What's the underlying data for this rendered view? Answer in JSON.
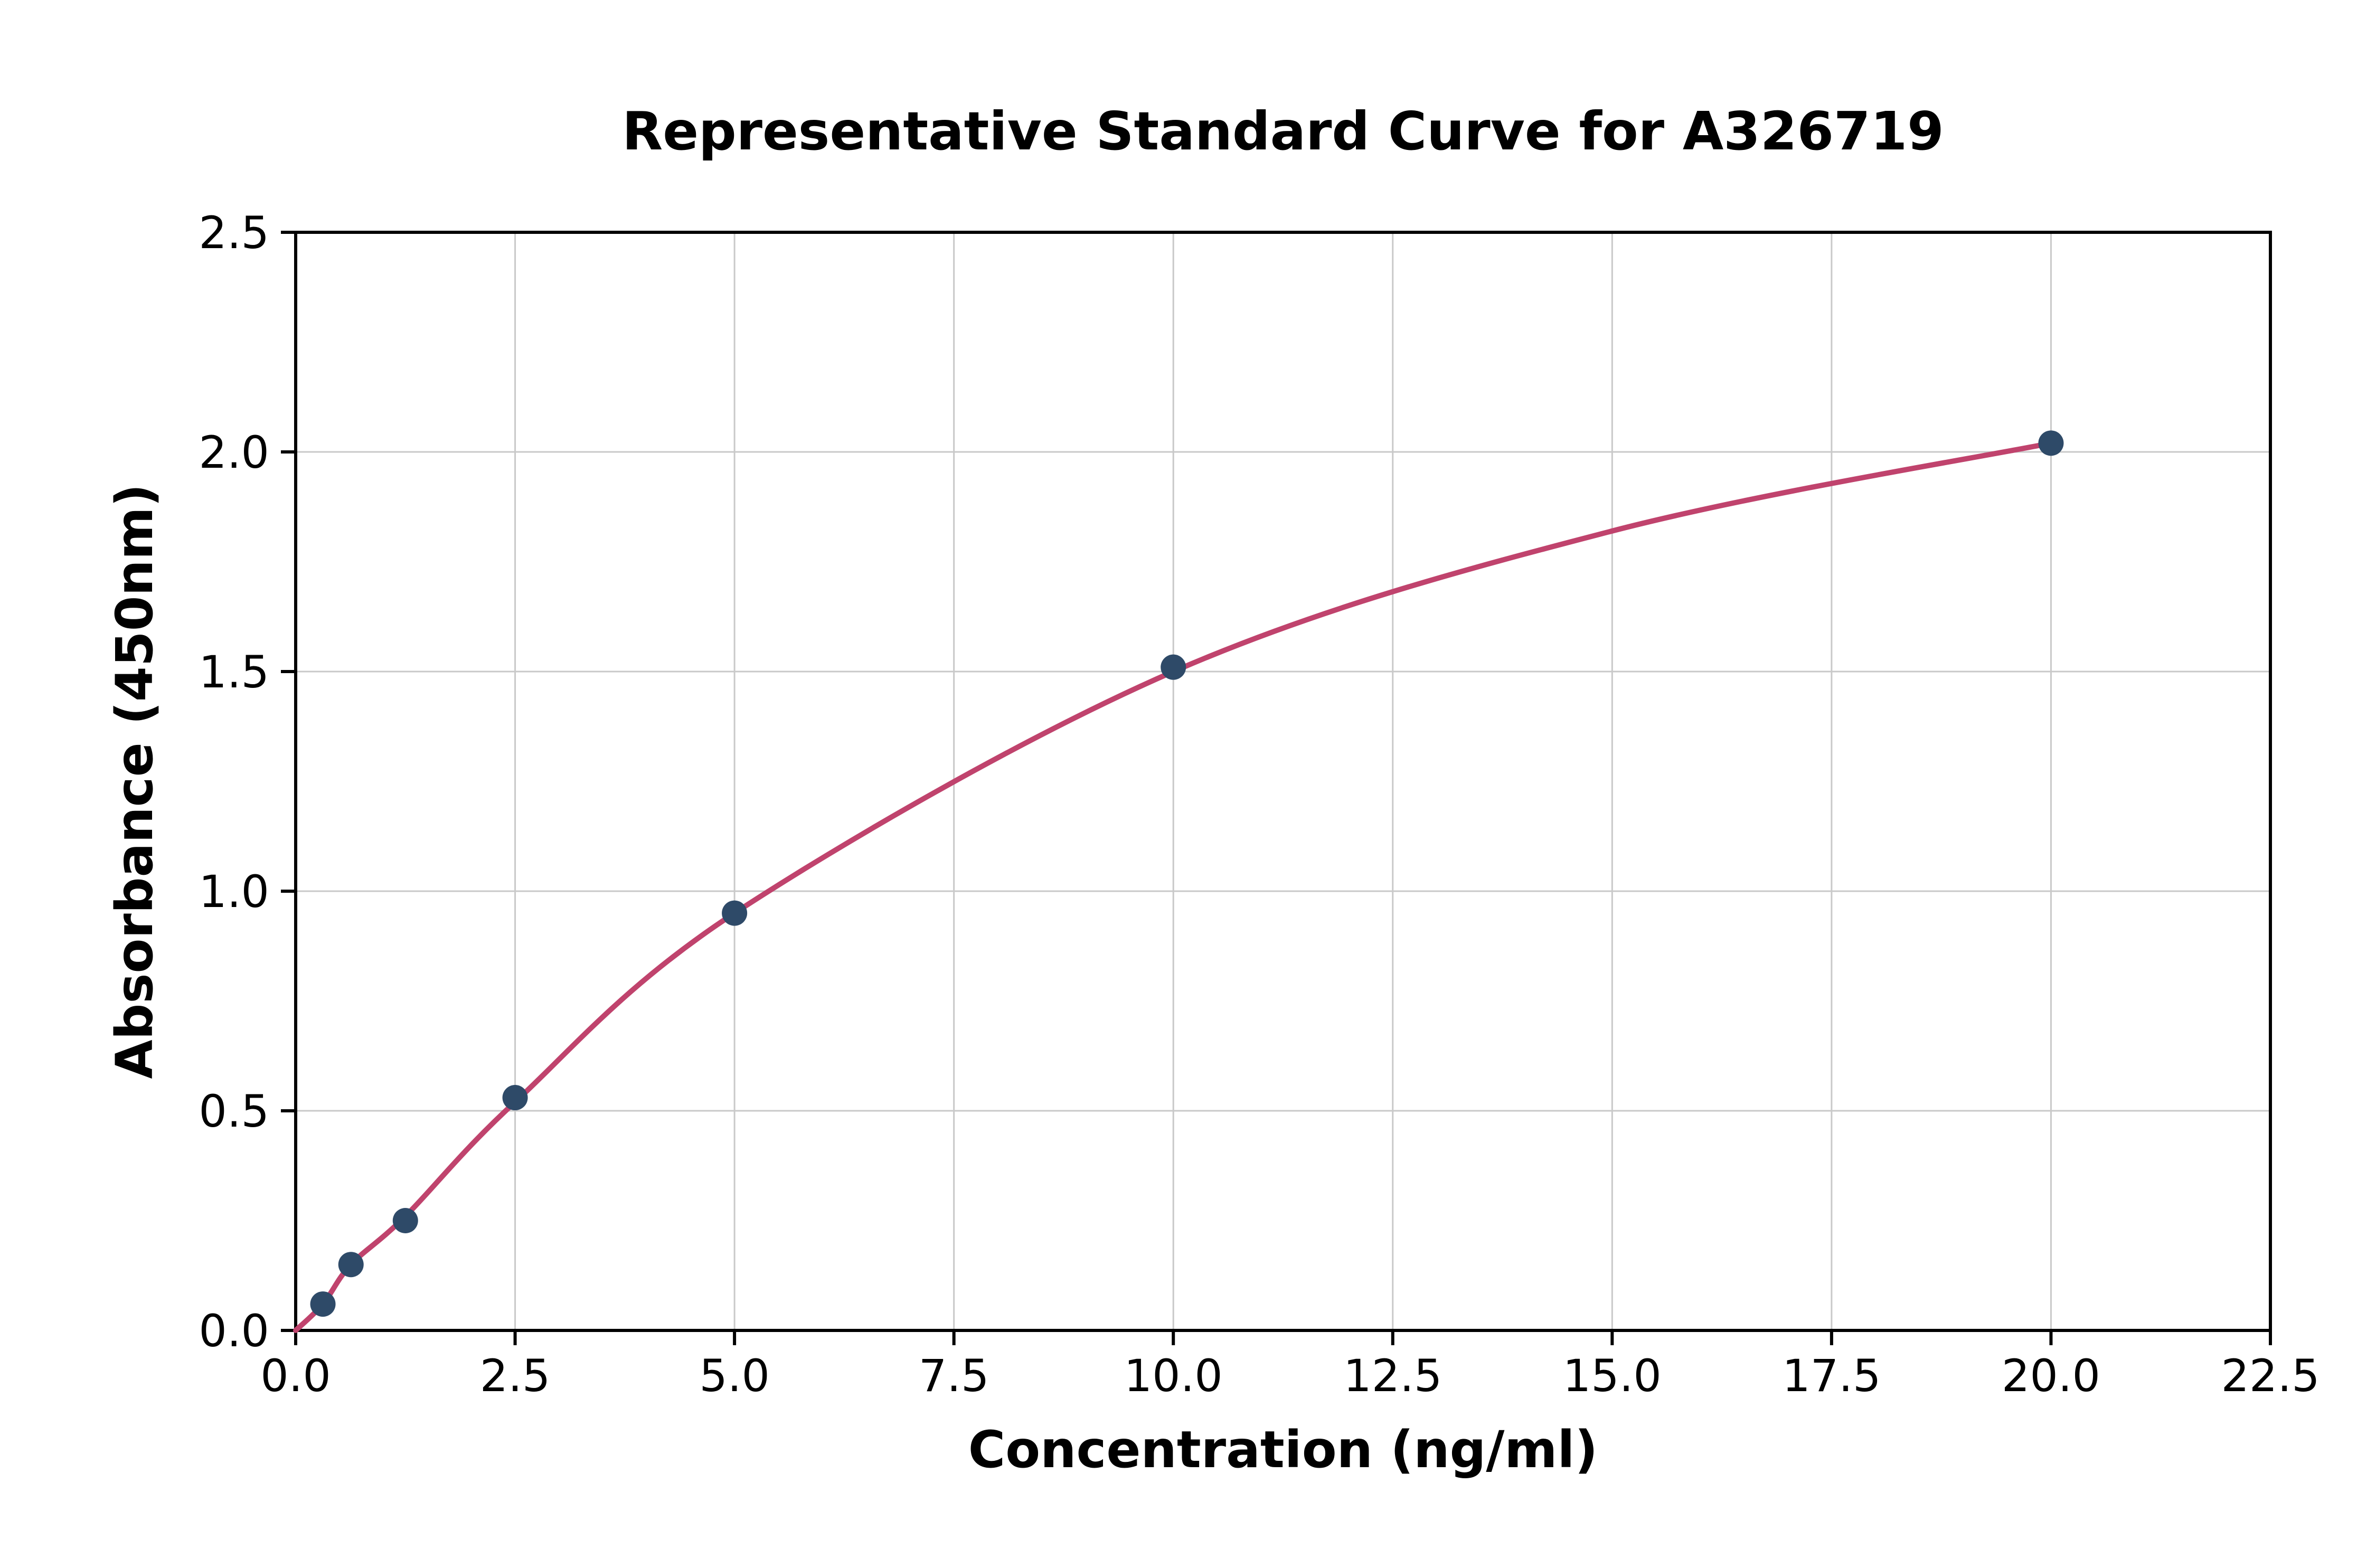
{
  "chart_data": {
    "type": "scatter",
    "title": "Representative Standard Curve for A326719",
    "xlabel": "Concentration (ng/ml)",
    "ylabel": "Absorbance (450nm)",
    "xlim": [
      0,
      22.5
    ],
    "ylim": [
      0,
      2.5
    ],
    "x_ticks": [
      0.0,
      2.5,
      5.0,
      7.5,
      10.0,
      12.5,
      15.0,
      17.5,
      20.0,
      22.5
    ],
    "x_tick_labels": [
      "0.0",
      "2.5",
      "5.0",
      "7.5",
      "10.0",
      "12.5",
      "15.0",
      "17.5",
      "20.0",
      "22.5"
    ],
    "y_ticks": [
      0.0,
      0.5,
      1.0,
      1.5,
      2.0,
      2.5
    ],
    "y_tick_labels": [
      "0.0",
      "0.5",
      "1.0",
      "1.5",
      "2.0",
      "2.5"
    ],
    "grid": true,
    "legend": "none",
    "points": [
      {
        "x": 0.31,
        "y": 0.06
      },
      {
        "x": 0.63,
        "y": 0.15
      },
      {
        "x": 1.25,
        "y": 0.25
      },
      {
        "x": 2.5,
        "y": 0.53
      },
      {
        "x": 5.0,
        "y": 0.95
      },
      {
        "x": 10.0,
        "y": 1.51
      },
      {
        "x": 20.0,
        "y": 2.02
      }
    ],
    "curve_points": [
      {
        "x": 0.0,
        "y": 0.0
      },
      {
        "x": 0.31,
        "y": 0.06
      },
      {
        "x": 0.63,
        "y": 0.15
      },
      {
        "x": 1.25,
        "y": 0.26
      },
      {
        "x": 2.5,
        "y": 0.52
      },
      {
        "x": 5.0,
        "y": 0.95
      },
      {
        "x": 10.0,
        "y": 1.5
      },
      {
        "x": 15.0,
        "y": 1.82
      },
      {
        "x": 20.0,
        "y": 2.02
      }
    ],
    "colors": {
      "point": "#2e4a68",
      "curve": "#c0436d",
      "grid": "#c9c9c9",
      "axis": "#000000",
      "background": "#ffffff"
    }
  }
}
